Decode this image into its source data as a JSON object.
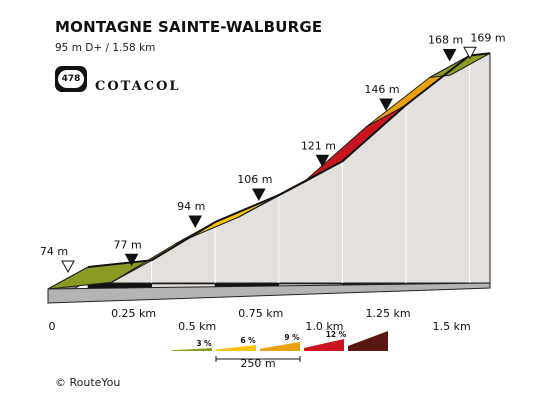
{
  "title": "MONTAGNE SAINTE-WALBURGE",
  "subtitle": "95 m D+ / 1.58 km",
  "badge": {
    "number": "478",
    "brand": "COTACOL"
  },
  "credit": "© RouteYou",
  "chart_data": {
    "type": "area",
    "total_km": 1.58,
    "profile": [
      {
        "km": 0.0,
        "alt": 74,
        "label": "74 m",
        "marker": "open"
      },
      {
        "km": 0.25,
        "alt": 77,
        "label": "77 m",
        "marker": "filled"
      },
      {
        "km": 0.5,
        "alt": 94,
        "label": "94 m",
        "marker": "filled"
      },
      {
        "km": 0.75,
        "alt": 106,
        "label": "106 m",
        "marker": "filled"
      },
      {
        "km": 1.0,
        "alt": 121,
        "label": "121 m",
        "marker": "filled"
      },
      {
        "km": 1.25,
        "alt": 146,
        "label": "146 m",
        "marker": "filled"
      },
      {
        "km": 1.5,
        "alt": 168,
        "label": "168 m",
        "marker": "filled"
      },
      {
        "km": 1.58,
        "alt": 169,
        "label": "169 m",
        "marker": "open"
      }
    ],
    "x_ticks": [
      "0",
      "0.25 km",
      "0.5 km",
      "0.75 km",
      "1.0 km",
      "1.25 km",
      "1.5 km"
    ],
    "segment_colors": [
      "#8a9a23",
      "#e9a20c",
      "#f7c30c",
      "#f7c30c",
      "#c8151e",
      "#e9a20c",
      "#8a9a23"
    ],
    "legend": [
      {
        "label": "3 %",
        "color": "#8a9a23"
      },
      {
        "label": "6 %",
        "color": "#f7c30c"
      },
      {
        "label": "9 %",
        "color": "#e9a20c"
      },
      {
        "label": "12 %",
        "color": "#c8151e"
      },
      {
        "label": "",
        "color": "#5a1612"
      }
    ],
    "scale_label": "250 m"
  }
}
